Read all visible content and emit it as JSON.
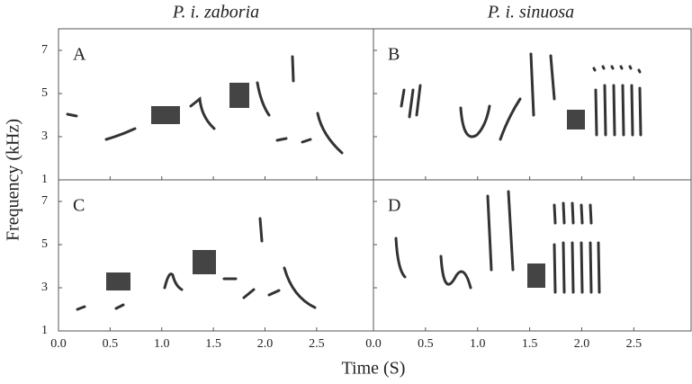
{
  "chart_data": {
    "type": "spectrogram",
    "xlabel": "Time (S)",
    "ylabel": "Frequency (kHz)",
    "column_titles": [
      "P. i. zaboria",
      "P. i. sinuosa"
    ],
    "panels": [
      "A",
      "B",
      "C",
      "D"
    ],
    "xlim": [
      0,
      3.05
    ],
    "ylim": [
      1,
      8
    ],
    "xticks": [
      {
        "value": 0,
        "label": "0.0"
      },
      0.5,
      {
        "value": 1,
        "label": "1.0"
      },
      1.5,
      {
        "value": 2,
        "label": "2.0"
      },
      2.5
    ],
    "yticks": [
      1,
      3,
      5,
      7
    ]
  }
}
